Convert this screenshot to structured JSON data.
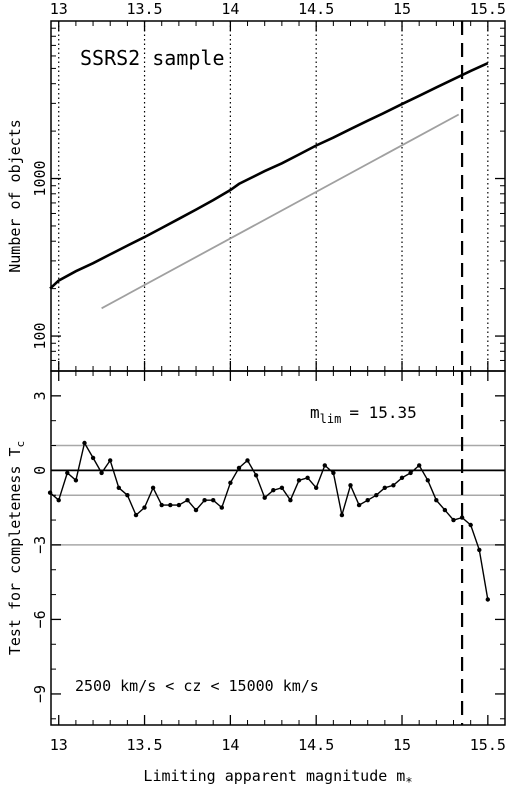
{
  "chart_data": [
    {
      "type": "line",
      "panel": "top",
      "annotation": "SSRS2 sample",
      "ylabel": "Number of objects",
      "xlabel": "",
      "xlim": [
        12.95,
        15.6
      ],
      "ylim": [
        60,
        10000
      ],
      "yscale": "log",
      "x_ticks": [
        13,
        13.5,
        14,
        14.5,
        15,
        15.5
      ],
      "x_tick_labels": [
        "13",
        "13.5",
        "14",
        "14.5",
        "15",
        "15.5"
      ],
      "y_ticks": [
        100,
        1000
      ],
      "y_tick_labels": [
        "100",
        "1000"
      ],
      "vertical_gridlines_dotted": [
        13,
        13.5,
        14,
        14.5,
        15,
        15.5
      ],
      "vertical_line_dashed": 15.35,
      "series": [
        {
          "color": "#000000",
          "x": [
            12.95,
            13.0,
            13.1,
            13.2,
            13.3,
            13.4,
            13.5,
            13.6,
            13.7,
            13.8,
            13.9,
            14.0,
            14.05,
            14.1,
            14.2,
            14.3,
            14.4,
            14.5,
            14.6,
            14.7,
            14.8,
            14.9,
            15.0,
            15.1,
            15.2,
            15.3,
            15.4,
            15.5
          ],
          "y": [
            200,
            225,
            258,
            290,
            330,
            375,
            425,
            485,
            555,
            635,
            730,
            845,
            925,
            985,
            1115,
            1250,
            1420,
            1620,
            1820,
            2060,
            2330,
            2620,
            2970,
            3350,
            3790,
            4270,
            4820,
            5400
          ]
        },
        {
          "color": "#a0a0a0",
          "x": [
            13.25,
            15.33
          ],
          "y": [
            150,
            2550
          ]
        }
      ]
    },
    {
      "type": "line",
      "panel": "bottom",
      "annotation_prefix": "m",
      "annotation_sub": "lim",
      "annotation_value": "= 15.35",
      "range_text": "2500 km/s < cz < 15000 km/s",
      "xlabel": "Limiting apparent magnitude  m",
      "xlabel_sub": "*",
      "ylabel": "Test for completeness  T",
      "ylabel_sub": "c",
      "xlim": [
        12.95,
        15.6
      ],
      "ylim": [
        -10.25,
        4.0
      ],
      "x_ticks": [
        13,
        13.5,
        14,
        14.5,
        15,
        15.5
      ],
      "x_tick_labels": [
        "13",
        "13.5",
        "14",
        "14.5",
        "15",
        "15.5"
      ],
      "y_ticks": [
        3,
        0,
        -3,
        -6,
        -9
      ],
      "y_tick_labels": [
        "3",
        "0",
        "−3",
        "−6",
        "−9"
      ],
      "horizontal_lines_gray": [
        1,
        -1,
        -3
      ],
      "horizontal_line_black": 0,
      "vertical_line_dashed": 15.35,
      "series": [
        {
          "color": "#000000",
          "x": [
            12.95,
            13.0,
            13.05,
            13.1,
            13.15,
            13.2,
            13.25,
            13.3,
            13.35,
            13.4,
            13.45,
            13.5,
            13.55,
            13.6,
            13.65,
            13.7,
            13.75,
            13.8,
            13.85,
            13.9,
            13.95,
            14.0,
            14.05,
            14.1,
            14.15,
            14.2,
            14.25,
            14.3,
            14.35,
            14.4,
            14.45,
            14.5,
            14.55,
            14.6,
            14.65,
            14.7,
            14.75,
            14.8,
            14.85,
            14.9,
            14.95,
            15.0,
            15.05,
            15.1,
            15.15,
            15.2,
            15.25,
            15.3,
            15.35,
            15.4,
            15.45,
            15.5
          ],
          "y": [
            -0.9,
            -1.2,
            -0.1,
            -0.4,
            1.1,
            0.5,
            -0.1,
            0.4,
            -0.7,
            -1.0,
            -1.8,
            -1.5,
            -0.7,
            -1.4,
            -1.4,
            -1.4,
            -1.2,
            -1.6,
            -1.2,
            -1.2,
            -1.5,
            -0.5,
            0.1,
            0.4,
            -0.2,
            -1.1,
            -0.8,
            -0.7,
            -1.2,
            -0.4,
            -0.3,
            -0.7,
            0.2,
            -0.1,
            -1.8,
            -0.6,
            -1.4,
            -1.2,
            -1.0,
            -0.7,
            -0.6,
            -0.3,
            -0.1,
            0.2,
            -0.4,
            -1.2,
            -1.6,
            -2.0,
            -1.9,
            -2.2,
            -3.2,
            -5.2
          ]
        }
      ]
    }
  ]
}
